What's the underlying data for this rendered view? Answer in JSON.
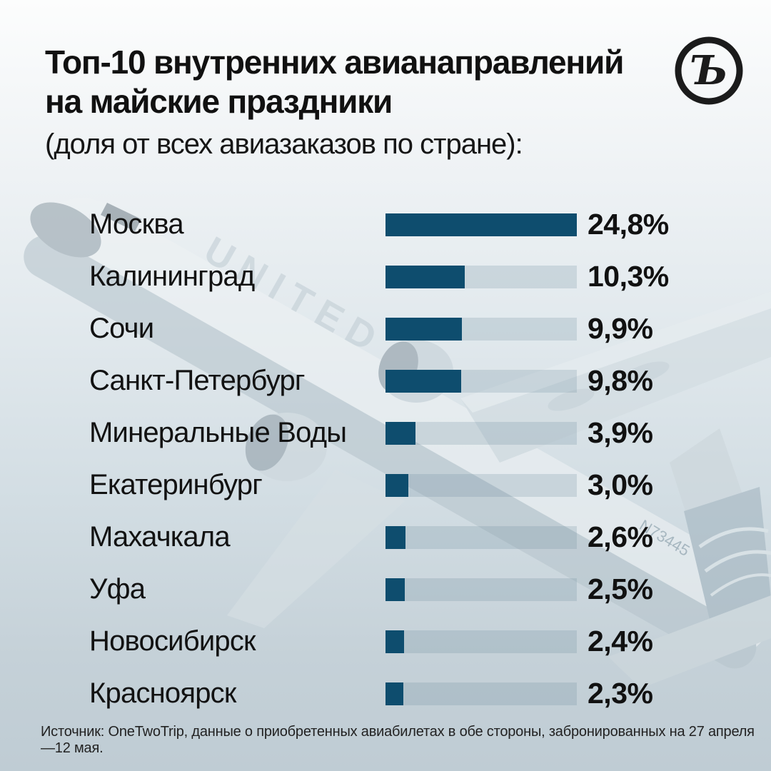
{
  "header": {
    "title_line1": "Топ-10 внутренних авианаправлений",
    "title_line2": "на майские праздники",
    "subtitle": "(доля от всех авиазаказов по стране):"
  },
  "brand": {
    "logo_glyph": "Ъ",
    "logo_color": "#1b1b1b"
  },
  "colors": {
    "bar_fill": "#0e4d6e",
    "bar_track": "rgba(104,136,156,0.22)",
    "text": "#121212"
  },
  "background_photo": {
    "airline_text": "UNITED",
    "registration": "N73445"
  },
  "source": "Источник: OneTwoTrip, данные о приобретенных авиабилетах в обе стороны, забронированных на 27 апреля —12 мая.",
  "chart_data": {
    "type": "bar",
    "orientation": "horizontal",
    "title": "Топ-10 внутренних авианаправлений на майские праздники (доля от всех авиазаказов по стране)",
    "categories": [
      "Москва",
      "Калининград",
      "Сочи",
      "Санкт-Петербург",
      "Минеральные Воды",
      "Екатеринбург",
      "Махачкала",
      "Уфа",
      "Новосибирск",
      "Красноярск"
    ],
    "values": [
      24.8,
      10.3,
      9.9,
      9.8,
      3.9,
      3.0,
      2.6,
      2.5,
      2.4,
      2.3
    ],
    "value_labels": [
      "24,8%",
      "10,3%",
      "9,9%",
      "9,8%",
      "3,9%",
      "3,0%",
      "2,6%",
      "2,5%",
      "2,4%",
      "2,3%"
    ],
    "unit": "%",
    "xlim": [
      0,
      24.8
    ],
    "grid": false,
    "legend": false
  }
}
